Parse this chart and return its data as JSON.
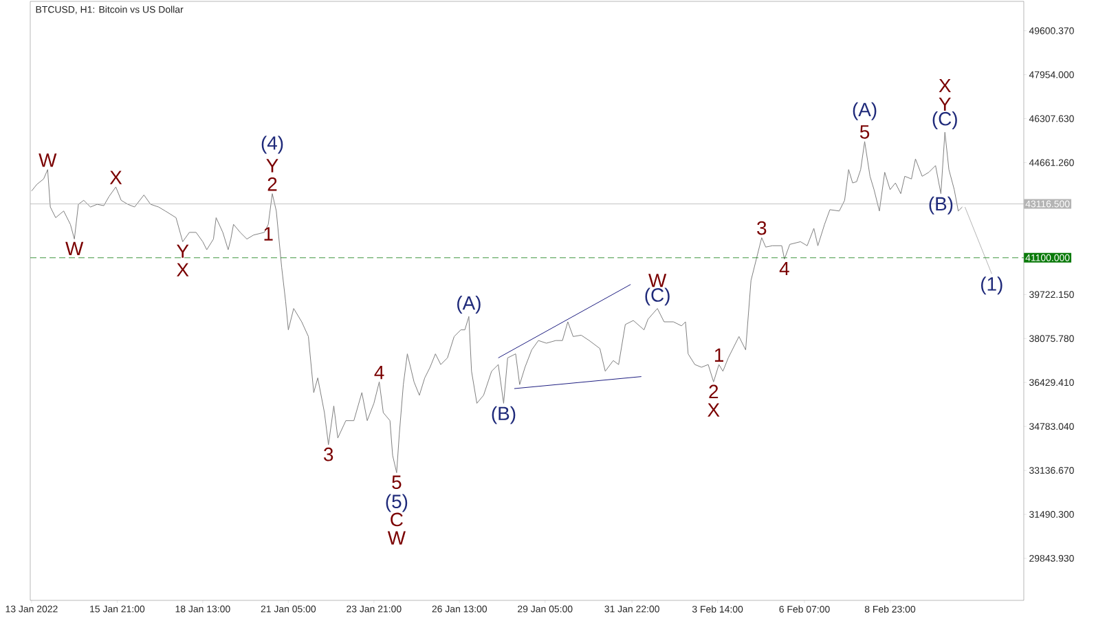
{
  "chart_data": {
    "type": "line",
    "title": "BTCUSD, H1:  Bitcoin vs US Dollar",
    "xlim": [
      "2022-01-13T04:00",
      "2022-02-13T03:00"
    ],
    "ylim": [
      28270,
      50700
    ],
    "xticks": [
      {
        "value": "2022-01-13T05:00",
        "label": "13 Jan 2022"
      },
      {
        "value": "2022-01-15T21:00",
        "label": "15 Jan 21:00"
      },
      {
        "value": "2022-01-18T13:00",
        "label": "18 Jan 13:00"
      },
      {
        "value": "2022-01-21T05:00",
        "label": "21 Jan 05:00"
      },
      {
        "value": "2022-01-23T21:00",
        "label": "23 Jan 21:00"
      },
      {
        "value": "2022-01-26T13:00",
        "label": "26 Jan 13:00"
      },
      {
        "value": "2022-01-29T05:00",
        "label": "29 Jan 05:00"
      },
      {
        "value": "2022-01-31T22:00",
        "label": "31 Jan 22:00"
      },
      {
        "value": "2022-02-03T14:00",
        "label": "3 Feb 14:00"
      },
      {
        "value": "2022-02-06T07:00",
        "label": "6 Feb 07:00"
      },
      {
        "value": "2022-02-08T23:00",
        "label": "8 Feb 23:00"
      }
    ],
    "yticks": [
      {
        "value": 49600.37,
        "label": "49600.370"
      },
      {
        "value": 47954.0,
        "label": "47954.000"
      },
      {
        "value": 46307.63,
        "label": "46307.630"
      },
      {
        "value": 44661.26,
        "label": "44661.260"
      },
      {
        "value": 39722.15,
        "label": "39722.150"
      },
      {
        "value": 38075.78,
        "label": "38075.780"
      },
      {
        "value": 36429.41,
        "label": "36429.410"
      },
      {
        "value": 34783.04,
        "label": "34783.040"
      },
      {
        "value": 33136.67,
        "label": "33136.670"
      },
      {
        "value": 31490.3,
        "label": "31490.300"
      },
      {
        "value": 29843.93,
        "label": "29843.930"
      }
    ],
    "series": [
      {
        "color": "#808080",
        "x": [
          "2022-01-13T05:00",
          "2022-01-13T09:00",
          "2022-01-13T14:00",
          "2022-01-13T17:00",
          "2022-01-13T19:00",
          "2022-01-13T23:00",
          "2022-01-14T05:00",
          "2022-01-14T10:00",
          "2022-01-14T13:00",
          "2022-01-14T16:00",
          "2022-01-14T20:00",
          "2022-01-15T01:00",
          "2022-01-15T06:00",
          "2022-01-15T11:00",
          "2022-01-15T15:00",
          "2022-01-15T20:00",
          "2022-01-16T00:00",
          "2022-01-16T05:00",
          "2022-01-16T10:00",
          "2022-01-16T17:00",
          "2022-01-16T22:00",
          "2022-01-17T04:00",
          "2022-01-17T09:00",
          "2022-01-17T17:00",
          "2022-01-17T22:00",
          "2022-01-18T03:00",
          "2022-01-18T08:00",
          "2022-01-18T13:00",
          "2022-01-18T16:00",
          "2022-01-18T21:00",
          "2022-01-18T23:00",
          "2022-01-19T04:00",
          "2022-01-19T08:00",
          "2022-01-19T10:00",
          "2022-01-19T12:00",
          "2022-01-19T17:00",
          "2022-01-19T22:00",
          "2022-01-20T03:00",
          "2022-01-20T11:00",
          "2022-01-20T14:00",
          "2022-01-20T17:00",
          "2022-01-20T20:00",
          "2022-01-20T22:00",
          "2022-01-21T00:00",
          "2022-01-21T03:00",
          "2022-01-21T05:00",
          "2022-01-21T09:00",
          "2022-01-21T15:00",
          "2022-01-21T20:00",
          "2022-01-22T00:00",
          "2022-01-22T03:00",
          "2022-01-22T08:00",
          "2022-01-22T11:00",
          "2022-01-22T15:00",
          "2022-01-22T18:00",
          "2022-01-23T00:00",
          "2022-01-23T06:00",
          "2022-01-23T12:00",
          "2022-01-23T16:00",
          "2022-01-23T21:00",
          "2022-01-24T01:00",
          "2022-01-24T04:00",
          "2022-01-24T09:00",
          "2022-01-24T11:00",
          "2022-01-24T14:00",
          "2022-01-24T16:00",
          "2022-01-24T19:00",
          "2022-01-24T22:00",
          "2022-01-25T03:00",
          "2022-01-25T07:00",
          "2022-01-25T11:00",
          "2022-01-25T15:00",
          "2022-01-25T19:00",
          "2022-01-25T23:00",
          "2022-01-26T04:00",
          "2022-01-26T09:00",
          "2022-01-26T14:00",
          "2022-01-26T17:00",
          "2022-01-26T20:00",
          "2022-01-26T22:00",
          "2022-01-27T02:00",
          "2022-01-27T07:00",
          "2022-01-27T13:00",
          "2022-01-27T18:00",
          "2022-01-27T22:00",
          "2022-01-28T01:00",
          "2022-01-28T07:00",
          "2022-01-28T10:00",
          "2022-01-28T14:00",
          "2022-01-28T19:00",
          "2022-01-29T00:00",
          "2022-01-29T06:00",
          "2022-01-29T13:00",
          "2022-01-29T18:00",
          "2022-01-29T22:00",
          "2022-01-30T02:00",
          "2022-01-30T08:00",
          "2022-01-30T14:00",
          "2022-01-30T22:00",
          "2022-01-31T02:00",
          "2022-01-31T08:00",
          "2022-01-31T12:00",
          "2022-01-31T17:00",
          "2022-01-31T23:00",
          "2022-02-01T07:00",
          "2022-02-01T10:00",
          "2022-02-01T17:00",
          "2022-02-01T22:00",
          "2022-02-02T05:00",
          "2022-02-02T11:00",
          "2022-02-02T14:00",
          "2022-02-02T16:00",
          "2022-02-02T21:00",
          "2022-02-03T02:00",
          "2022-02-03T07:00",
          "2022-02-03T11:00",
          "2022-02-03T15:00",
          "2022-02-03T18:00",
          "2022-02-03T22:00",
          "2022-02-04T06:00",
          "2022-02-04T11:00",
          "2022-02-04T15:00",
          "2022-02-04T19:00",
          "2022-02-04T23:00",
          "2022-02-05T02:00",
          "2022-02-05T07:00",
          "2022-02-05T14:00",
          "2022-02-05T16:00",
          "2022-02-05T20:00",
          "2022-02-06T04:00",
          "2022-02-06T09:00",
          "2022-02-06T14:00",
          "2022-02-06T17:00",
          "2022-02-06T22:00",
          "2022-02-07T02:00",
          "2022-02-07T09:00",
          "2022-02-07T13:00",
          "2022-02-07T16:00",
          "2022-02-07T19:00",
          "2022-02-07T22:00",
          "2022-02-08T01:00",
          "2022-02-08T04:00",
          "2022-02-08T08:00",
          "2022-02-08T11:00",
          "2022-02-08T15:00",
          "2022-02-08T19:00",
          "2022-02-08T23:00",
          "2022-02-09T03:00",
          "2022-02-09T07:00",
          "2022-02-09T10:00",
          "2022-02-09T15:00",
          "2022-02-09T18:00",
          "2022-02-09T23:00",
          "2022-02-10T04:00",
          "2022-02-10T09:00",
          "2022-02-10T13:00",
          "2022-02-10T16:00",
          "2022-02-10T19:00",
          "2022-02-10T23:00",
          "2022-02-11T02:00",
          "2022-02-11T05:00"
        ],
        "values": [
          43600,
          43850,
          44050,
          44400,
          43000,
          42600,
          42850,
          42350,
          41800,
          43100,
          43250,
          43000,
          43100,
          43050,
          43400,
          43750,
          43250,
          43100,
          43000,
          43450,
          43100,
          43000,
          42850,
          42600,
          41700,
          42050,
          42050,
          41700,
          41400,
          41800,
          42600,
          42050,
          41400,
          41800,
          42350,
          42050,
          41800,
          41950,
          42050,
          42350,
          43500,
          42850,
          41800,
          40750,
          39450,
          38400,
          39200,
          38700,
          38150,
          36050,
          36600,
          35300,
          34100,
          35550,
          34350,
          35000,
          35000,
          36050,
          35000,
          35650,
          36450,
          35300,
          35000,
          33700,
          33050,
          34500,
          36350,
          37500,
          36450,
          35950,
          36600,
          37000,
          37500,
          37100,
          37350,
          38150,
          38400,
          38400,
          38900,
          36850,
          35650,
          35950,
          36850,
          37100,
          35650,
          37350,
          37500,
          36350,
          37000,
          37650,
          38000,
          37900,
          38000,
          38000,
          38700,
          38150,
          38200,
          38000,
          37700,
          36850,
          37250,
          37100,
          38600,
          38750,
          38400,
          38800,
          39200,
          38700,
          38700,
          38550,
          38700,
          37500,
          37100,
          37000,
          37100,
          36450,
          37100,
          36850,
          37350,
          38150,
          37650,
          40250,
          41050,
          41850,
          41500,
          41550,
          41550,
          41050,
          41600,
          41700,
          41550,
          42200,
          41550,
          42350,
          42900,
          42850,
          43250,
          44400,
          43900,
          43950,
          44400,
          45450,
          44150,
          43650,
          42850,
          44300,
          43650,
          43900,
          43500,
          44150,
          44050,
          44800,
          44150,
          44300,
          44550,
          43500,
          45800,
          44400,
          43650,
          42850,
          43000
        ]
      },
      {
        "color": "#b4b4b4",
        "x": [
          "2022-02-11T07:00",
          "2022-02-12T03:00"
        ],
        "values": [
          43000,
          40500
        ]
      },
      {
        "color": "#1c1c80",
        "x": [
          "2022-01-27T18:00",
          "2022-01-31T21:00"
        ],
        "values": [
          37350,
          40100
        ]
      },
      {
        "color": "#1c1c80",
        "x": [
          "2022-01-28T06:00",
          "2022-02-01T05:00"
        ],
        "values": [
          36200,
          36650
        ]
      }
    ],
    "ref_lines": [
      {
        "axis": "y",
        "value": 43116.5,
        "label": "43116.500",
        "color": "#b4b4b4",
        "line_style": "solid"
      },
      {
        "axis": "y",
        "value": 41100,
        "label": "41100.000",
        "color": "#0a7a0a",
        "line_style": "dashed"
      }
    ],
    "annotations": [
      {
        "text": "W",
        "x": "2022-01-13T17:00",
        "y": 44400
      },
      {
        "text": "X",
        "x": "2022-01-15T20:00",
        "y": 43750
      },
      {
        "text": "W",
        "x": "2022-01-14T13:00",
        "y": 41800
      },
      {
        "text": "Y",
        "x": "2022-01-17T22:00",
        "y": 41700
      },
      {
        "text": "X",
        "x": "2022-01-17T22:00",
        "y": 41700
      },
      {
        "text": "2",
        "x": "2022-01-20T17:00",
        "y": 43500
      },
      {
        "text": "Y",
        "x": "2022-01-20T17:00",
        "y": 43500
      },
      {
        "text": "(4)",
        "x": "2022-01-20T17:00",
        "y": 43500
      },
      {
        "text": "1",
        "x": "2022-01-20T14:00",
        "y": 42350
      },
      {
        "text": "(A)",
        "x": "2022-01-26T20:00",
        "y": 38900
      },
      {
        "text": "(B)",
        "x": "2022-01-27T22:00",
        "y": 35650
      },
      {
        "text": "4",
        "x": "2022-01-24T01:00",
        "y": 36450
      },
      {
        "text": "3",
        "x": "2022-01-22T11:00",
        "y": 34100
      },
      {
        "text": "5",
        "x": "2022-01-24T14:00",
        "y": 33050
      },
      {
        "text": "(5)",
        "x": "2022-01-24T14:00",
        "y": 33050
      },
      {
        "text": "C",
        "x": "2022-01-24T14:00",
        "y": 33050
      },
      "W",
      {
        "text": "(C)",
        "x": "2022-02-01T17:00",
        "y": 39200
      },
      {
        "text": "W",
        "x": "2022-02-01T17:00",
        "y": 39200
      },
      {
        "text": "1",
        "x": "2022-02-03T15:00",
        "y": 37100
      },
      {
        "text": "2",
        "x": "2022-02-03T11:00",
        "y": 36450
      },
      {
        "text": "X",
        "x": "2022-02-03T11:00",
        "y": 36450
      },
      {
        "text": "3",
        "x": "2022-02-04T23:00",
        "y": 41850
      },
      {
        "text": "4",
        "x": "2022-02-05T16:00",
        "y": 41050
      },
      {
        "text": "5",
        "x": "2022-02-08T04:00",
        "y": 45450
      },
      {
        "text": "(A)",
        "x": "2022-02-08T04:00",
        "y": 45450
      },
      {
        "text": "(C)",
        "x": "2022-02-10T16:00",
        "y": 45800
      },
      {
        "text": "Y",
        "x": "2022-02-10T16:00",
        "y": 45800
      },
      {
        "text": "X",
        "x": "2022-02-10T16:00",
        "y": 45800
      },
      {
        "text": "(B)",
        "x": "2022-02-10T13:00",
        "y": 43500
      },
      {
        "text": "(1)",
        "x": "2022-02-12T03:00",
        "y": 40500
      }
    ]
  }
}
